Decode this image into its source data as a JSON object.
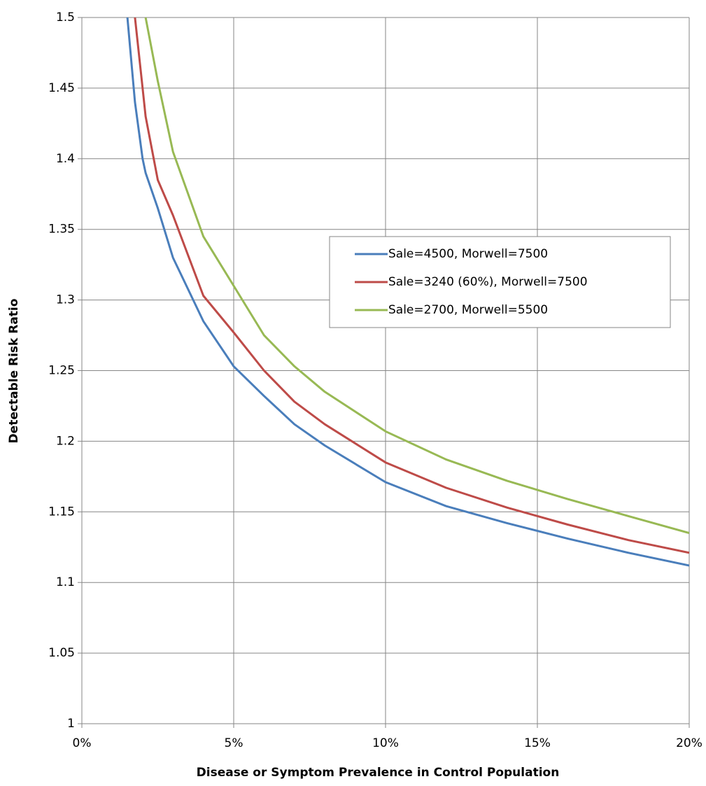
{
  "chart_data": {
    "type": "line",
    "x_label": "Disease or Symptom Prevalence in Control Population",
    "y_label": "Detectable Risk Ratio",
    "x": [
      1.5,
      1.75,
      2,
      2.1,
      2.5,
      3,
      4,
      5,
      6,
      7,
      8,
      10,
      12,
      14,
      16,
      18,
      20
    ],
    "series": [
      {
        "name": "Sale=4500, Morwell=7500",
        "color": "#4a7ebb",
        "values": [
          1.5,
          1.44,
          1.4,
          1.39,
          1.365,
          1.33,
          1.285,
          1.253,
          1.232,
          1.212,
          1.197,
          1.171,
          1.154,
          1.142,
          1.131,
          1.121,
          1.112
        ]
      },
      {
        "name": "Sale=3240 (60%), Morwell=7500",
        "color": "#be4b48",
        "values": [
          null,
          1.5,
          1.45,
          1.43,
          1.385,
          1.36,
          1.303,
          1.277,
          1.25,
          1.228,
          1.212,
          1.185,
          1.167,
          1.153,
          1.141,
          1.13,
          1.121
        ]
      },
      {
        "name": "Sale=2700, Morwell=5500",
        "color": "#98b954",
        "values": [
          null,
          null,
          null,
          1.5,
          1.455,
          1.405,
          1.345,
          1.31,
          1.275,
          1.253,
          1.235,
          1.207,
          1.187,
          1.172,
          1.159,
          1.147,
          1.135
        ]
      }
    ],
    "xlim": [
      0,
      20
    ],
    "xticks": [
      {
        "value": 0,
        "label": "0%"
      },
      {
        "value": 5,
        "label": "5%"
      },
      {
        "value": 10,
        "label": "10%"
      },
      {
        "value": 15,
        "label": "15%"
      },
      {
        "value": 20,
        "label": "20%"
      }
    ],
    "ylim": [
      1,
      1.5
    ],
    "yticks": [
      1,
      1.05,
      1.1,
      1.15,
      1.2,
      1.25,
      1.3,
      1.35,
      1.4,
      1.45,
      1.5
    ],
    "grid": true,
    "legend": "right"
  }
}
